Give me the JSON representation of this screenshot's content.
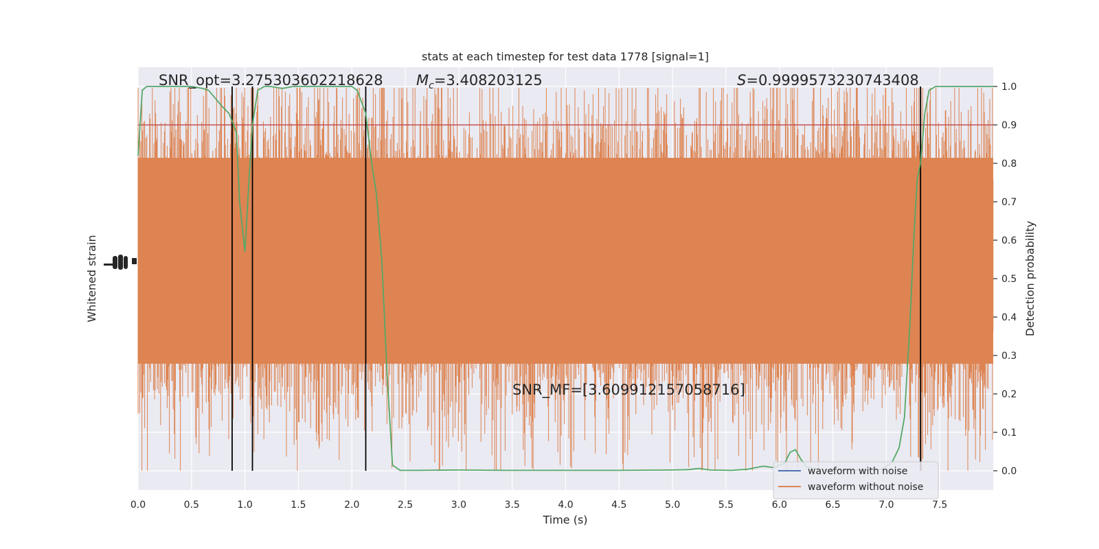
{
  "chart_data": {
    "type": "line",
    "title": "stats at each timestep for test data 1778 [signal=1]",
    "xlabel": "Time (s)",
    "ylabel_left": "Whitened strain",
    "ylabel_right": "Detection probability",
    "xlim": [
      0.0,
      8.0
    ],
    "ylim_right": [
      -0.05,
      1.05
    ],
    "x_ticks": [
      "0.0",
      "0.5",
      "1.0",
      "1.5",
      "2.0",
      "2.5",
      "3.0",
      "3.5",
      "4.0",
      "4.5",
      "5.0",
      "5.5",
      "6.0",
      "6.5",
      "7.0",
      "7.5"
    ],
    "y_ticks_right": [
      "0.0",
      "0.1",
      "0.2",
      "0.3",
      "0.4",
      "0.5",
      "0.6",
      "0.7",
      "0.8",
      "0.9",
      "1.0"
    ],
    "grid": true,
    "annotations": {
      "snr_opt": "SNR_opt=3.275303602218628",
      "mc_symbol": "M",
      "mc_subscript": "c",
      "mc_value": "=3.408203125",
      "s_symbol": "S",
      "s_value": "=0.9999573230743408",
      "snr_mf": "SNR_MF=[3.609912157058716]"
    },
    "threshold": 0.9,
    "vertical_markers_x": [
      0.88,
      1.07,
      2.13,
      7.32
    ],
    "series": [
      {
        "name": "waveform with noise",
        "color": "#4c72b0"
      },
      {
        "name": "waveform without noise",
        "color": "#dd8452"
      },
      {
        "color": "#55a868",
        "axis": "right",
        "x": [
          0.0,
          0.04,
          0.08,
          0.12,
          0.2,
          0.3,
          0.4,
          0.5,
          0.6,
          0.66,
          0.72,
          0.78,
          0.85,
          0.88,
          0.92,
          0.95,
          1.0,
          1.03,
          1.07,
          1.12,
          1.18,
          1.24,
          1.35,
          1.45,
          1.6,
          1.8,
          2.0,
          2.05,
          2.13,
          2.18,
          2.23,
          2.28,
          2.33,
          2.38,
          2.45,
          2.6,
          3.0,
          3.4,
          3.6,
          4.0,
          4.5,
          5.0,
          5.15,
          5.25,
          5.35,
          5.55,
          5.7,
          5.85,
          5.95,
          6.05,
          6.1,
          6.15,
          6.2,
          6.25,
          6.4,
          6.6,
          6.8,
          6.95,
          7.05,
          7.12,
          7.17,
          7.22,
          7.26,
          7.29,
          7.32,
          7.36,
          7.4,
          7.46,
          7.55,
          7.7,
          8.0
        ],
        "y": [
          0.82,
          0.99,
          1.0,
          1.0,
          1.0,
          1.0,
          1.0,
          1.0,
          0.995,
          0.99,
          0.97,
          0.95,
          0.93,
          0.91,
          0.88,
          0.7,
          0.57,
          0.72,
          0.9,
          0.99,
          1.0,
          1.0,
          0.995,
          1.0,
          1.0,
          1.0,
          1.0,
          0.99,
          0.93,
          0.81,
          0.72,
          0.55,
          0.25,
          0.015,
          0.001,
          0.001,
          0.002,
          0.001,
          0.001,
          0.001,
          0.001,
          0.002,
          0.003,
          0.006,
          0.002,
          0.001,
          0.004,
          0.012,
          0.008,
          0.02,
          0.048,
          0.055,
          0.03,
          0.01,
          0.003,
          0.002,
          0.002,
          0.003,
          0.02,
          0.06,
          0.14,
          0.38,
          0.62,
          0.76,
          0.8,
          0.93,
          0.99,
          1.0,
          1.0,
          1.0,
          1.0
        ]
      }
    ]
  }
}
